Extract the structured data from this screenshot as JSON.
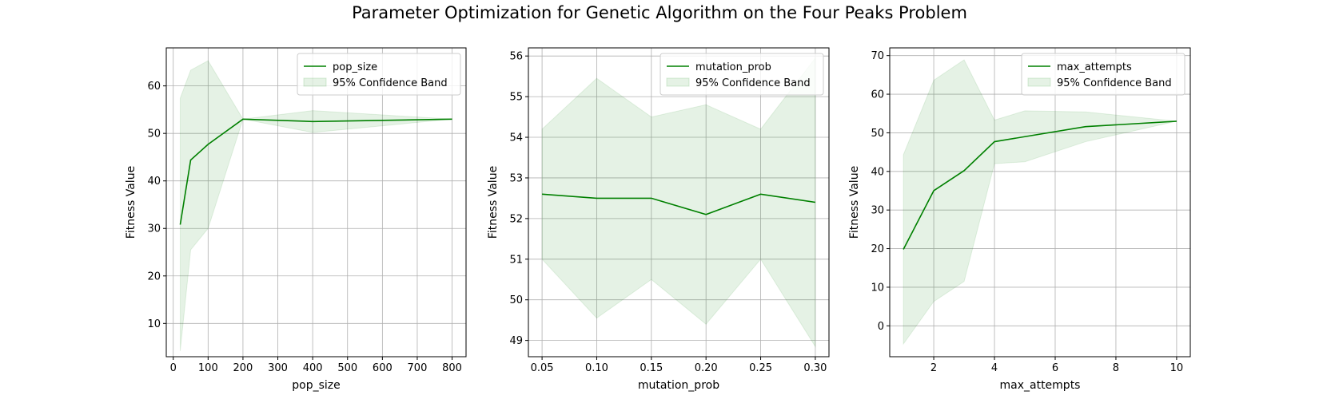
{
  "figure_title": "Parameter Optimization for Genetic Algorithm on the Four Peaks Problem",
  "colors": {
    "line": "#008000",
    "band": "#008000",
    "grid": "#b0b0b0"
  },
  "chart_data": [
    {
      "type": "line",
      "xlabel": "pop_size",
      "ylabel": "Fitness Value",
      "grid": true,
      "legend_placement": "upper right",
      "xlim": [
        -20,
        840
      ],
      "ylim": [
        3,
        68
      ],
      "xticks": [
        0,
        100,
        200,
        300,
        400,
        500,
        600,
        700,
        800
      ],
      "xtick_labels": [
        "0",
        "100",
        "200",
        "300",
        "400",
        "500",
        "600",
        "700",
        "800"
      ],
      "yticks": [
        10,
        20,
        30,
        40,
        50,
        60
      ],
      "ytick_labels": [
        "10",
        "20",
        "30",
        "40",
        "50",
        "60"
      ],
      "series": [
        {
          "name": "pop_size",
          "x": [
            20,
            50,
            100,
            200,
            400,
            800
          ],
          "y": [
            30.8,
            44.4,
            47.7,
            53.0,
            52.5,
            53.0
          ],
          "lower": [
            4.2,
            25.5,
            30.0,
            53.0,
            50.2,
            53.0
          ],
          "upper": [
            57.4,
            63.3,
            65.3,
            53.0,
            54.8,
            53.0
          ]
        }
      ],
      "band_label": "95% Confidence Band"
    },
    {
      "type": "line",
      "xlabel": "mutation_prob",
      "ylabel": "Fitness Value",
      "grid": true,
      "legend_placement": "upper right",
      "xlim": [
        0.0375,
        0.3125
      ],
      "ylim": [
        48.6,
        56.2
      ],
      "xticks": [
        0.05,
        0.1,
        0.15,
        0.2,
        0.25,
        0.3
      ],
      "xtick_labels": [
        "0.05",
        "0.10",
        "0.15",
        "0.20",
        "0.25",
        "0.30"
      ],
      "yticks": [
        49,
        50,
        51,
        52,
        53,
        54,
        55,
        56
      ],
      "ytick_labels": [
        "49",
        "50",
        "51",
        "52",
        "53",
        "54",
        "55",
        "56"
      ],
      "series": [
        {
          "name": "mutation_prob",
          "x": [
            0.05,
            0.1,
            0.15,
            0.2,
            0.25,
            0.3
          ],
          "y": [
            52.6,
            52.5,
            52.5,
            52.1,
            52.6,
            52.4
          ],
          "lower": [
            51.0,
            49.55,
            50.5,
            49.4,
            51.0,
            48.85
          ],
          "upper": [
            54.2,
            55.45,
            54.5,
            54.8,
            54.2,
            55.95
          ]
        }
      ],
      "band_label": "95% Confidence Band"
    },
    {
      "type": "line",
      "xlabel": "max_attempts",
      "ylabel": "Fitness Value",
      "grid": true,
      "legend_placement": "upper right",
      "xlim": [
        0.55,
        10.45
      ],
      "ylim": [
        -8,
        72
      ],
      "xticks": [
        2,
        4,
        6,
        8,
        10
      ],
      "xtick_labels": [
        "2",
        "4",
        "6",
        "8",
        "10"
      ],
      "yticks": [
        0,
        10,
        20,
        30,
        40,
        50,
        60,
        70
      ],
      "ytick_labels": [
        "0",
        "10",
        "20",
        "30",
        "40",
        "50",
        "60",
        "70"
      ],
      "series": [
        {
          "name": "max_attempts",
          "x": [
            1,
            2,
            3,
            4,
            5,
            7,
            10
          ],
          "y": [
            19.8,
            35.0,
            40.2,
            47.7,
            49.0,
            51.6,
            53.0
          ],
          "lower": [
            -4.7,
            6.3,
            11.5,
            42.0,
            42.5,
            47.7,
            53.0
          ],
          "upper": [
            44.3,
            63.6,
            68.9,
            53.3,
            55.7,
            55.4,
            53.0
          ]
        }
      ],
      "band_label": "95% Confidence Band"
    }
  ]
}
